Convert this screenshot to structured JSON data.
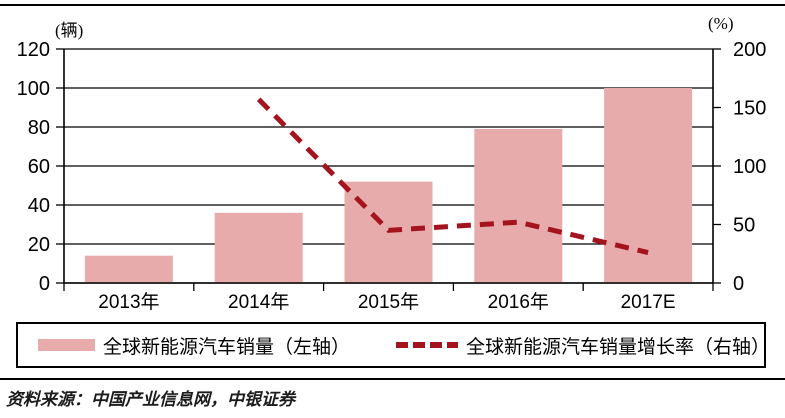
{
  "colors": {
    "bar": "#e8abab",
    "line": "#a3141f",
    "axis": "#000000",
    "grid": "#000000",
    "source_text": "#1c1c1c"
  },
  "chart_data": {
    "type": "bar",
    "subtype": "bar-plus-dashed-line-dual-axis",
    "categories": [
      "2013年",
      "2014年",
      "2015年",
      "2016年",
      "2017E"
    ],
    "series": [
      {
        "name": "全球新能源汽车销量（左轴）",
        "type": "bar",
        "axis": "left",
        "values": [
          14,
          36,
          52,
          79,
          100
        ],
        "color": "#e8abab"
      },
      {
        "name": "全球新能源汽车销量增长率（右轴）",
        "type": "line",
        "axis": "right",
        "style": "dashed",
        "values": [
          null,
          157,
          45,
          52,
          26
        ],
        "color": "#a3141f"
      }
    ],
    "left_axis": {
      "unit": "(辆)",
      "min": 0,
      "max": 120,
      "step": 20,
      "tick_labels": [
        "0",
        "20",
        "40",
        "60",
        "80",
        "100",
        "120"
      ]
    },
    "right_axis": {
      "unit": "(%)",
      "min": 0,
      "max": 200,
      "step": 50,
      "tick_labels": [
        "0",
        "50",
        "100",
        "150",
        "200"
      ]
    },
    "grid": true,
    "legend_position": "bottom",
    "title": ""
  },
  "legend": {
    "items": [
      {
        "label": "全球新能源汽车销量（左轴）",
        "swatch": "bar"
      },
      {
        "label": "全球新能源汽车销量增长率（右轴）",
        "swatch": "dashed-line"
      }
    ]
  },
  "footer": {
    "source": "资料来源：中国产业信息网，中银证券"
  }
}
